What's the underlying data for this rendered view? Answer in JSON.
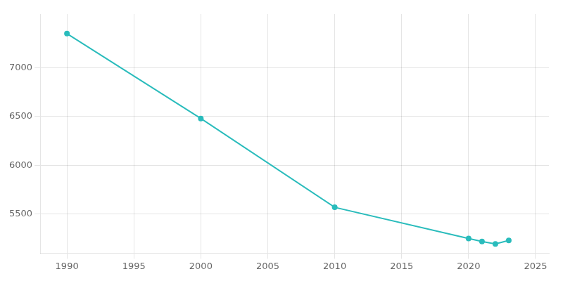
{
  "chart_data": {
    "type": "line",
    "x": [
      1990,
      2000,
      2010,
      2020,
      2021,
      2022,
      2023
    ],
    "values": [
      7350,
      6480,
      5570,
      5250,
      5220,
      5195,
      5230
    ],
    "color": "#2abcbc",
    "marker": "circle",
    "xlim": [
      1988,
      2026
    ],
    "xticks": [
      1990,
      1995,
      2000,
      2005,
      2010,
      2015,
      2020,
      2025
    ],
    "ylim": [
      5100,
      7550
    ],
    "yticks": [
      5500,
      6000,
      6500,
      7000
    ],
    "grid": true
  }
}
